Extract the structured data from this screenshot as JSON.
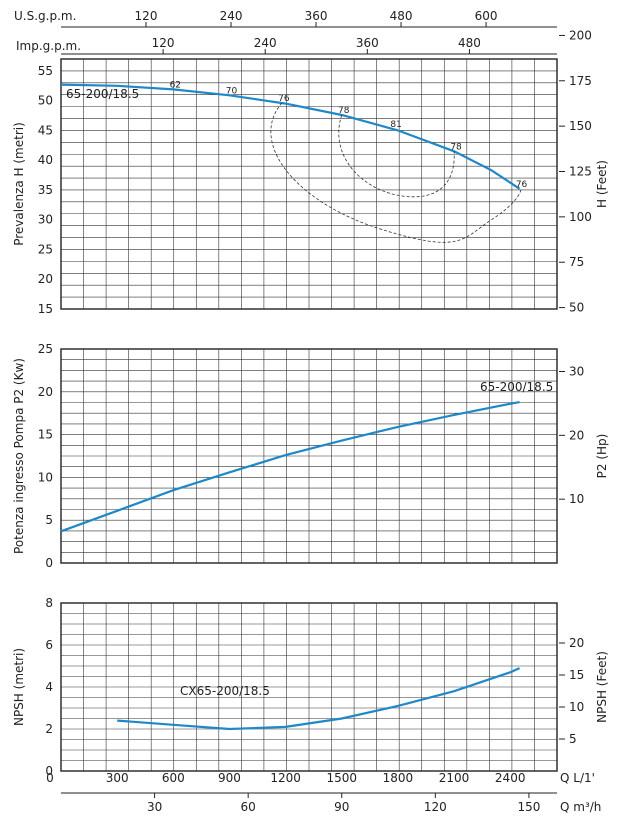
{
  "colors": {
    "curve": "#1e88c8",
    "grid": "#333333",
    "background": "#ffffff"
  },
  "chart_data": [
    {
      "type": "line",
      "title": "",
      "top_axes": [
        {
          "label": "U.S.g.p.m.",
          "ticks": [
            "120",
            "240",
            "360",
            "480",
            "600"
          ]
        },
        {
          "label": "Imp.g.p.m.",
          "ticks": [
            "120",
            "240",
            "360",
            "480"
          ]
        }
      ],
      "xlabel": "Q L/1'",
      "ylabel": "Prevalenza H (metri)",
      "y2label": "H (Feet)",
      "xlim": [
        0,
        2650
      ],
      "ylim": [
        15,
        57
      ],
      "y2ticks": [
        "50",
        "75",
        "100",
        "125",
        "150",
        "175",
        "200"
      ],
      "yticks": [
        "15",
        "20",
        "25",
        "30",
        "35",
        "40",
        "45",
        "50",
        "55"
      ],
      "series": [
        {
          "name": "65-200/18.5",
          "x": [
            0,
            300,
            600,
            900,
            1200,
            1500,
            1800,
            2100,
            2300,
            2450
          ],
          "y": [
            52.7,
            52.5,
            51.9,
            50.9,
            49.5,
            47.6,
            45.0,
            41.5,
            38.3,
            35.2
          ]
        }
      ],
      "efficiency_labels": [
        "62",
        "70",
        "76",
        "78",
        "81",
        "78",
        "76"
      ],
      "efficiency_points": [
        {
          "label": "62",
          "x": 600,
          "y": 51.9
        },
        {
          "label": "70",
          "x": 900,
          "y": 50.9
        },
        {
          "label": "76",
          "x": 1180,
          "y": 49.6
        },
        {
          "label": "78",
          "x": 1500,
          "y": 47.6
        },
        {
          "label": "81",
          "x": 1780,
          "y": 45.2
        },
        {
          "label": "78",
          "x": 2100,
          "y": 41.5
        },
        {
          "label": "76",
          "x": 2450,
          "y": 35.2
        }
      ]
    },
    {
      "type": "line",
      "title": "",
      "ylabel": "Potenza ingresso Pompa P2 (Kw)",
      "y2label": "P2 (Hp)",
      "xlim": [
        0,
        2650
      ],
      "ylim": [
        0,
        25
      ],
      "yticks": [
        "0",
        "5",
        "10",
        "15",
        "20",
        "25"
      ],
      "y2ticks": [
        "10",
        "20",
        "30"
      ],
      "series": [
        {
          "name": "65-200/18.5",
          "x": [
            0,
            300,
            600,
            900,
            1200,
            1500,
            1800,
            2100,
            2400,
            2450
          ],
          "y": [
            3.7,
            6.1,
            8.5,
            10.6,
            12.6,
            14.3,
            15.9,
            17.3,
            18.6,
            18.8
          ]
        }
      ]
    },
    {
      "type": "line",
      "title": "",
      "ylabel": "NPSH (metri)",
      "y2label": "NPSH (Feet)",
      "xlabel": "Q m³/h",
      "xlim": [
        0,
        2650
      ],
      "ylim": [
        0,
        8
      ],
      "yticks": [
        "0",
        "2",
        "4",
        "6",
        "8"
      ],
      "y2ticks": [
        "5",
        "10",
        "15",
        "20"
      ],
      "x_ticks_lmin": [
        "0",
        "300",
        "600",
        "900",
        "1200",
        "1500",
        "1800",
        "2100",
        "2400"
      ],
      "x_ticks_m3h": [
        "30",
        "60",
        "90",
        "120",
        "150"
      ],
      "series": [
        {
          "name": "CX65-200/18.5",
          "x": [
            300,
            600,
            900,
            1200,
            1500,
            1800,
            2100,
            2400,
            2450
          ],
          "y": [
            2.4,
            2.2,
            2.0,
            2.1,
            2.5,
            3.1,
            3.8,
            4.7,
            4.9
          ]
        }
      ]
    }
  ]
}
